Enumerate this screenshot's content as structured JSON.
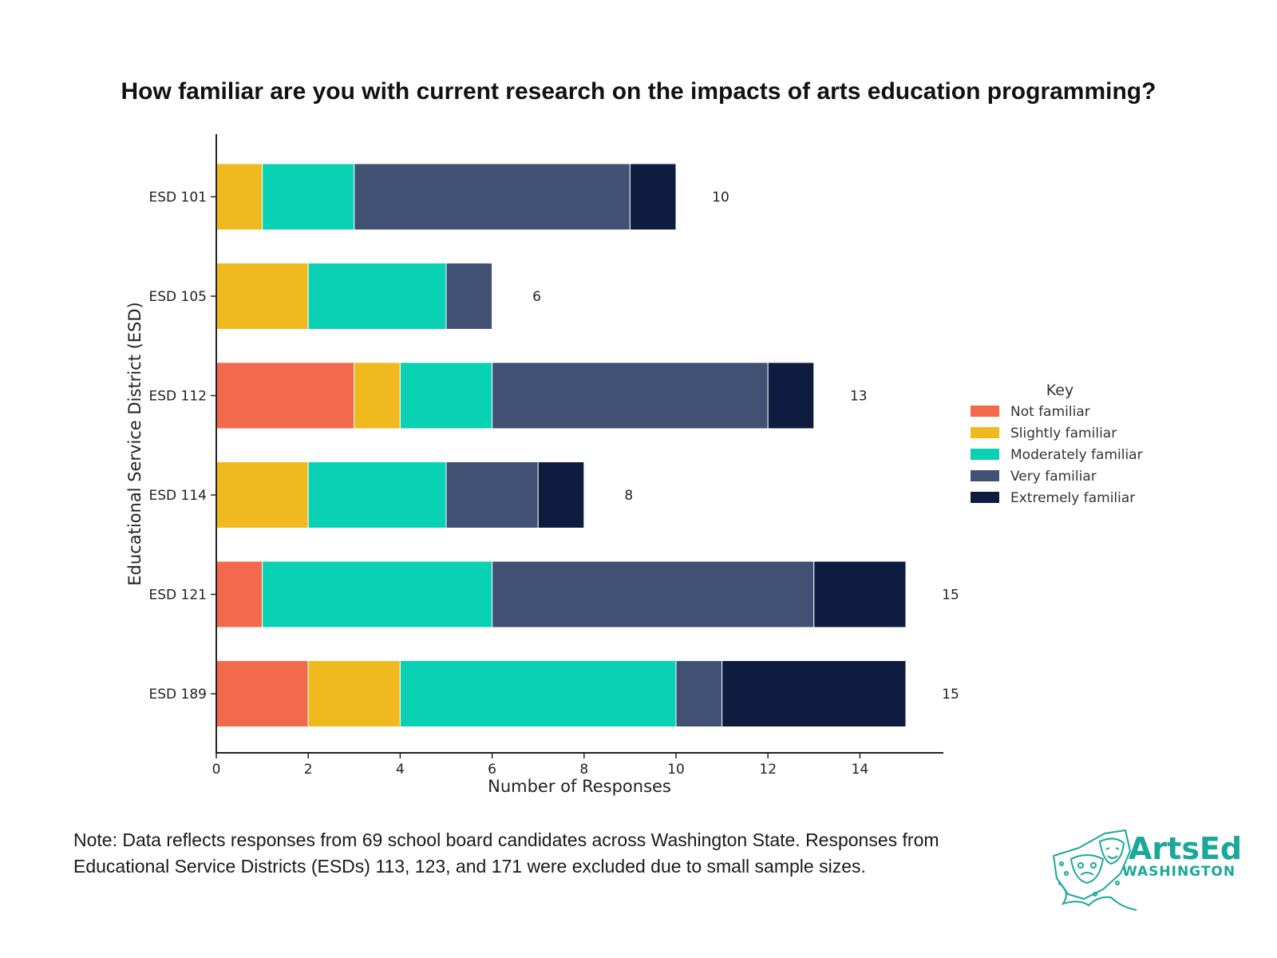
{
  "chart_data": {
    "type": "bar",
    "orientation": "horizontal",
    "stacked": true,
    "title": "How familiar are you with current research on the impacts of arts education programming?",
    "xlabel": "Number of Responses",
    "ylabel": "Educational Service District (ESD)",
    "xlim": [
      0,
      15.75
    ],
    "xticks": [
      0,
      2,
      4,
      6,
      8,
      10,
      12,
      14
    ],
    "categories": [
      "ESD 101",
      "ESD 105",
      "ESD 112",
      "ESD 114",
      "ESD 121",
      "ESD 189"
    ],
    "series": [
      {
        "name": "Not familiar",
        "color": "#f2694b",
        "values": [
          0,
          0,
          3,
          0,
          1,
          2
        ]
      },
      {
        "name": "Slightly familiar",
        "color": "#f0b91e",
        "values": [
          1,
          2,
          1,
          2,
          0,
          2
        ]
      },
      {
        "name": "Moderately familiar",
        "color": "#08d1b4",
        "values": [
          2,
          3,
          2,
          3,
          5,
          6
        ]
      },
      {
        "name": "Very familiar",
        "color": "#405173",
        "values": [
          6,
          1,
          6,
          2,
          7,
          1
        ]
      },
      {
        "name": "Extremely familiar",
        "color": "#0e1c3f",
        "values": [
          1,
          0,
          1,
          1,
          2,
          4
        ]
      }
    ],
    "totals": [
      "10",
      "6",
      "13",
      "8",
      "15",
      "15"
    ],
    "legend": {
      "title": "Key",
      "position": "center-right"
    }
  },
  "note": {
    "line1": "Note: Data reflects responses from 69 school board candidates across Washington State. Responses from",
    "line2": "Educational Service Districts (ESDs) 113, 123, and 171 were excluded due to small sample sizes."
  },
  "logo": {
    "arts_text": "ArtsEd",
    "state_text": "WASHINGTON",
    "color": "#1aa89a"
  }
}
